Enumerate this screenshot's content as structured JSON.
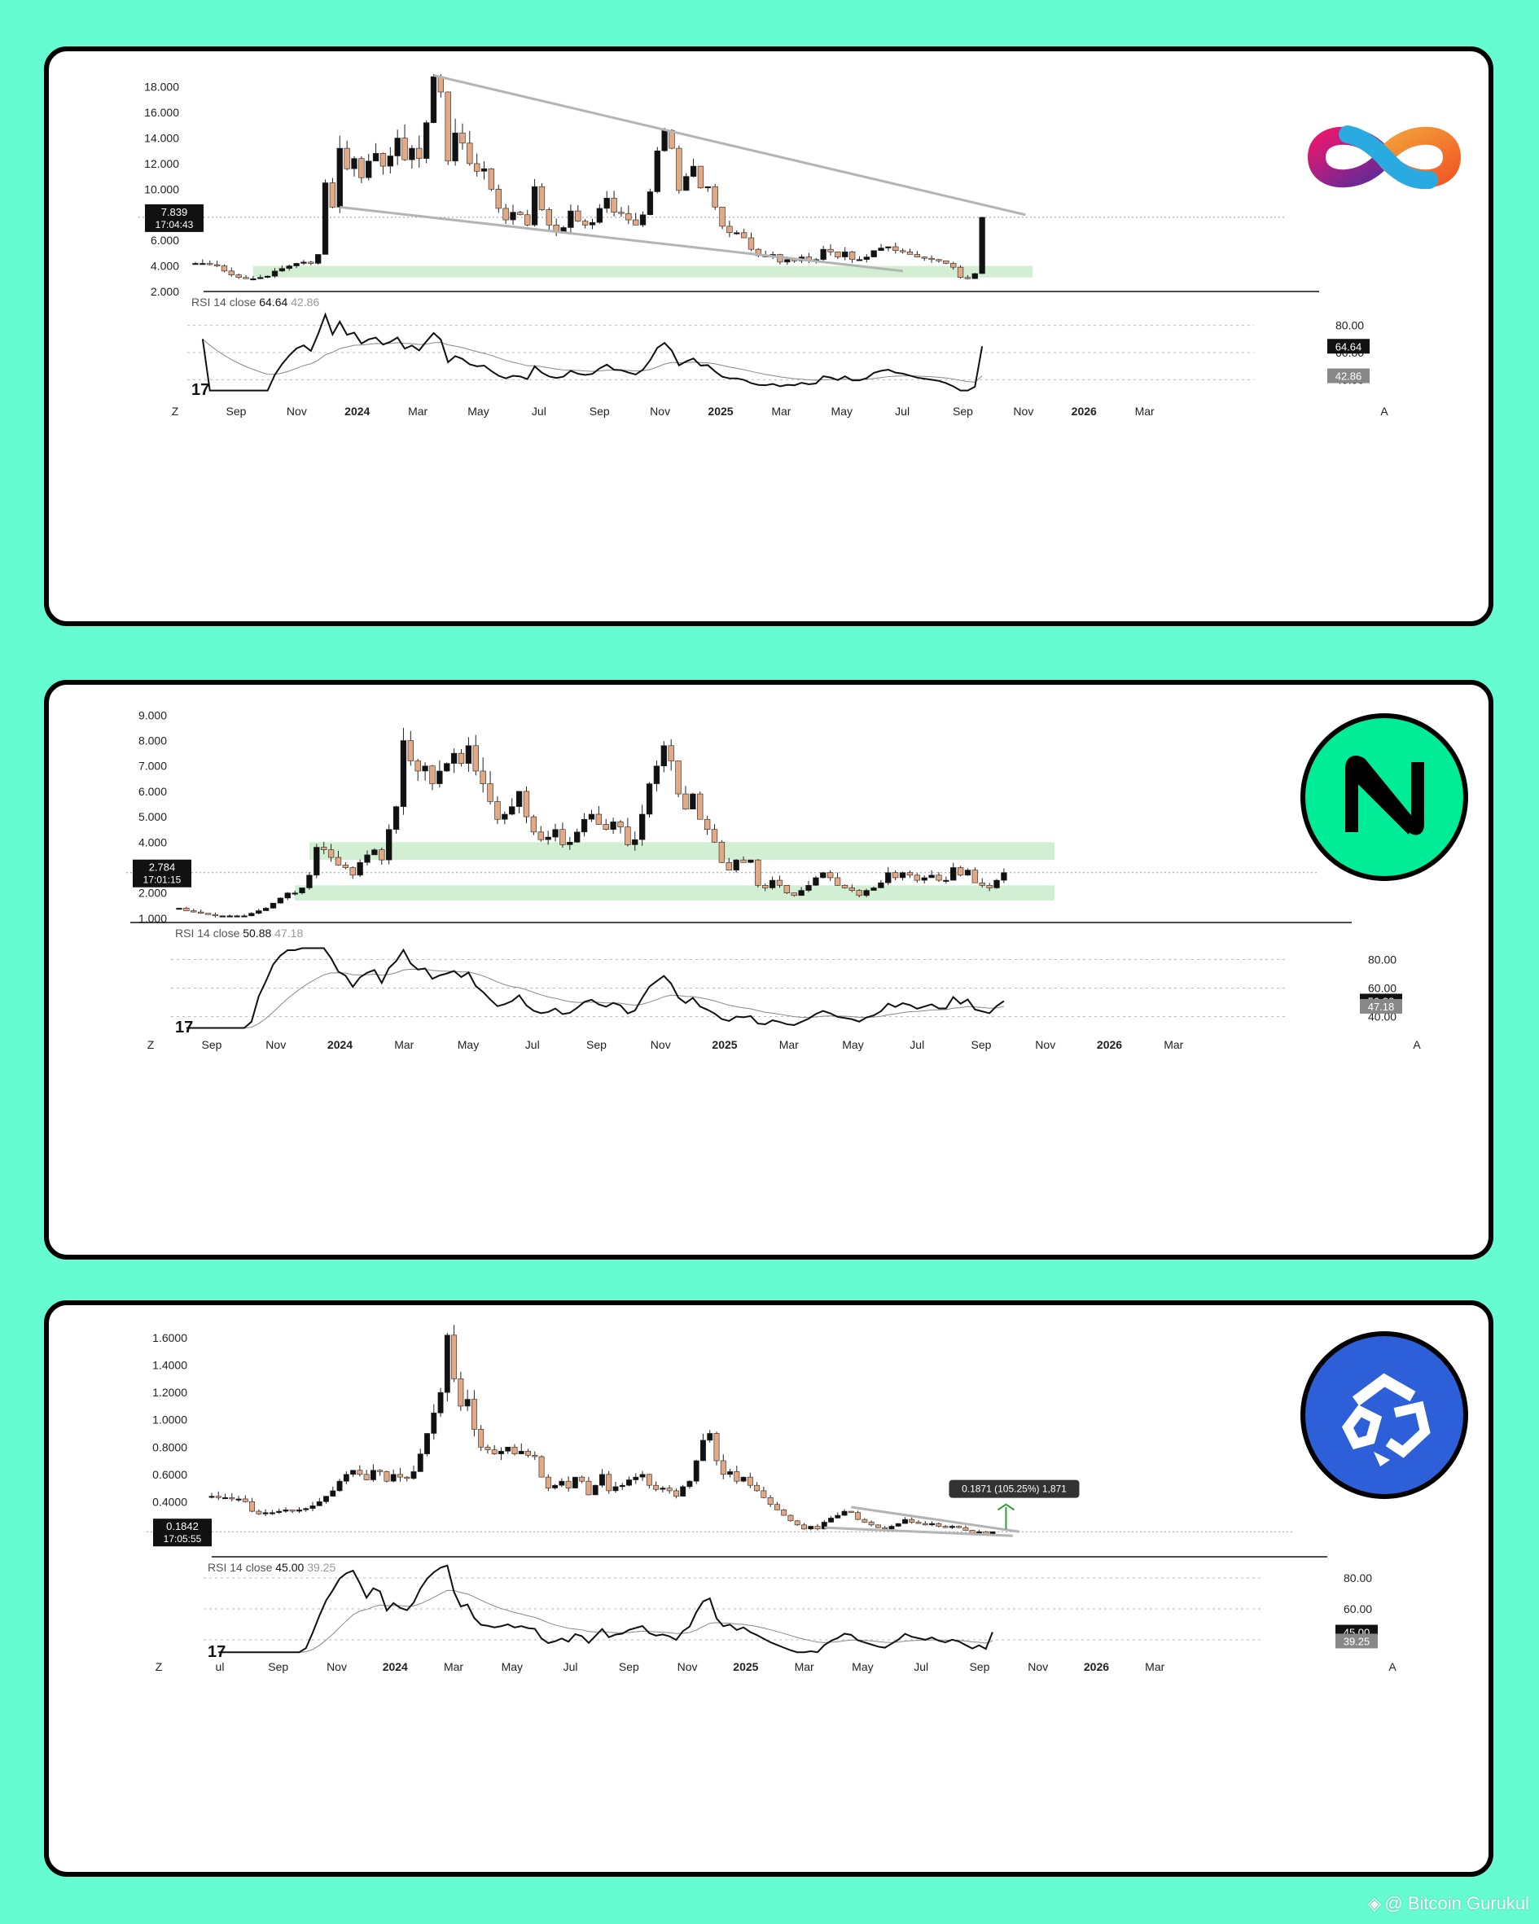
{
  "watermark": {
    "text": "@ Bitcoin Gurukul",
    "icon": "binance-diamond-icon"
  },
  "colors": {
    "background": "#66fcd1",
    "up": "#111111",
    "down": "#e3a884",
    "zone": "#c8ebc8",
    "trendline": "#b4b4b4"
  },
  "panels": [
    {
      "logo": "infinity-logo-icon",
      "price_box": {
        "value": "7.839",
        "timer": "17:04:43"
      },
      "rsi_legend": {
        "label": "RSI 14 close",
        "value": "64.64",
        "ma": "42.86"
      },
      "rsi_badges": {
        "value": "64.64",
        "ma": "42.86"
      },
      "x_labels": [
        "Sep",
        "Nov",
        "2024",
        "Mar",
        "May",
        "Jul",
        "Sep",
        "Nov",
        "2025",
        "Mar",
        "May",
        "Jul",
        "Sep",
        "Nov",
        "2026",
        "Mar"
      ],
      "corner_left": "Z",
      "corner_right": "A"
    },
    {
      "logo": "near-logo-icon",
      "price_box": {
        "value": "2.784",
        "timer": "17:01:15"
      },
      "rsi_legend": {
        "label": "RSI 14 close",
        "value": "50.88",
        "ma": "47.18"
      },
      "rsi_badges": {
        "value": "50.88",
        "ma": "47.18"
      },
      "x_labels": [
        "Sep",
        "Nov",
        "2024",
        "Mar",
        "May",
        "Jul",
        "Sep",
        "Nov",
        "2025",
        "Mar",
        "May",
        "Jul",
        "Sep",
        "Nov",
        "2026",
        "Mar"
      ],
      "corner_left": "Z",
      "corner_right": "A"
    },
    {
      "logo": "hexagon-logo-icon",
      "price_box": {
        "value": "0.1842",
        "timer": "17:05:55"
      },
      "rsi_legend": {
        "label": "RSI 14 close",
        "value": "45.00",
        "ma": "39.25"
      },
      "rsi_badges": {
        "value": "45.00",
        "ma": "39.25"
      },
      "measure_tooltip": "0.1871 (105.25%) 1,871",
      "x_labels": [
        "ul",
        "Sep",
        "Nov",
        "2024",
        "Mar",
        "May",
        "Jul",
        "Sep",
        "Nov",
        "2025",
        "Mar",
        "May",
        "Jul",
        "Sep",
        "Nov",
        "2026",
        "Mar"
      ],
      "corner_left": "Z",
      "corner_right": "A"
    }
  ],
  "chart_data": [
    {
      "type": "candlestick",
      "interval_note": "weekly candles",
      "y_ticks": [
        "2.000",
        "4.000",
        "6.000",
        "8.000",
        "10.000",
        "12.000",
        "14.000",
        "16.000",
        "18.000"
      ],
      "ylim": [
        2,
        19
      ],
      "close": [
        4.2,
        4.2,
        4.1,
        4.0,
        3.6,
        3.3,
        3.1,
        3.0,
        3.0,
        3.1,
        3.2,
        3.6,
        3.8,
        4.0,
        4.2,
        4.3,
        4.2,
        4.9,
        10.5,
        8.6,
        13.2,
        11.6,
        12.4,
        10.9,
        12.2,
        12.8,
        11.8,
        12.6,
        14.0,
        12.3,
        13.2,
        12.4,
        15.2,
        18.8,
        17.6,
        12.2,
        14.4,
        13.6,
        12.0,
        11.4,
        11.6,
        10.0,
        8.5,
        7.6,
        8.2,
        8.0,
        7.2,
        10.2,
        8.4,
        7.2,
        6.7,
        7.0,
        8.3,
        7.5,
        7.2,
        7.4,
        8.5,
        9.3,
        8.2,
        8.1,
        7.6,
        7.2,
        8.0,
        9.8,
        13.0,
        14.6,
        13.2,
        9.9,
        11.0,
        11.8,
        10.1,
        10.2,
        8.6,
        7.1,
        6.6,
        6.6,
        6.2,
        5.3,
        4.8,
        4.7,
        4.9,
        4.3,
        4.5,
        4.4,
        4.7,
        4.4,
        4.5,
        5.3,
        5.1,
        4.7,
        5.1,
        4.5,
        4.5,
        4.7,
        5.2,
        5.4,
        5.5,
        5.2,
        5.1,
        4.9,
        4.7,
        4.6,
        4.5,
        4.4,
        4.2,
        3.9,
        3.1,
        3.0,
        3.4,
        7.8
      ],
      "support_zone": [
        3.1,
        4.0
      ],
      "resistance_line": [
        [
          18.9,
          "2024-04"
        ],
        [
          8.0,
          "2025-11"
        ]
      ],
      "support_line": [
        [
          8.5,
          "2023-12"
        ],
        [
          3.6,
          "2025-07"
        ]
      ],
      "rsi": {
        "yticks": [
          "40.00",
          "60.00",
          "80.00"
        ],
        "value": 64.64,
        "ma": 42.86
      }
    },
    {
      "type": "candlestick",
      "y_ticks": [
        "1.000",
        "2.000",
        "3.000",
        "4.000",
        "5.000",
        "6.000",
        "7.000",
        "8.000",
        "9.000"
      ],
      "ylim": [
        0.9,
        9.3
      ],
      "close": [
        1.4,
        1.3,
        1.25,
        1.2,
        1.15,
        1.1,
        1.1,
        1.1,
        1.1,
        1.1,
        1.2,
        1.3,
        1.4,
        1.6,
        1.8,
        2.0,
        2.0,
        2.2,
        2.7,
        3.8,
        3.7,
        3.4,
        3.1,
        3.0,
        2.7,
        3.2,
        3.5,
        3.7,
        3.3,
        4.5,
        5.4,
        8.0,
        7.2,
        6.8,
        7.0,
        6.3,
        6.8,
        7.1,
        7.5,
        7.1,
        7.8,
        6.8,
        6.3,
        5.6,
        4.9,
        5.1,
        5.4,
        6.0,
        5.0,
        4.4,
        4.1,
        4.2,
        4.5,
        3.9,
        4.0,
        4.4,
        4.9,
        5.1,
        4.7,
        4.5,
        4.8,
        4.6,
        3.9,
        4.1,
        5.1,
        6.3,
        7.0,
        7.8,
        7.2,
        5.9,
        5.3,
        5.9,
        4.9,
        4.5,
        4.0,
        3.2,
        2.9,
        3.3,
        3.2,
        3.3,
        2.3,
        2.2,
        2.5,
        2.3,
        2.0,
        1.9,
        2.1,
        2.3,
        2.6,
        2.8,
        2.6,
        2.3,
        2.2,
        2.1,
        1.9,
        2.1,
        2.2,
        2.4,
        2.8,
        2.6,
        2.8,
        2.7,
        2.5,
        2.6,
        2.7,
        2.5,
        2.5,
        3.0,
        2.7,
        2.9,
        2.4,
        2.3,
        2.2,
        2.5,
        2.8
      ],
      "resistance_zone": [
        3.3,
        4.0
      ],
      "support_zone": [
        1.7,
        2.3
      ],
      "rsi": {
        "yticks": [
          "40.00",
          "60.00",
          "80.00"
        ],
        "value": 50.88,
        "ma": 47.18
      }
    },
    {
      "type": "candlestick",
      "y_ticks": [
        "0.4000",
        "0.6000",
        "0.8000",
        "1.0000",
        "1.2000",
        "1.4000",
        "1.6000"
      ],
      "ylim": [
        0.05,
        1.72
      ],
      "close": [
        0.44,
        0.43,
        0.43,
        0.42,
        0.42,
        0.4,
        0.33,
        0.31,
        0.32,
        0.32,
        0.33,
        0.34,
        0.33,
        0.34,
        0.35,
        0.37,
        0.4,
        0.44,
        0.48,
        0.55,
        0.6,
        0.63,
        0.6,
        0.56,
        0.63,
        0.62,
        0.55,
        0.6,
        0.58,
        0.57,
        0.62,
        0.75,
        0.9,
        1.05,
        1.2,
        1.62,
        1.3,
        1.1,
        1.15,
        0.93,
        0.8,
        0.78,
        0.75,
        0.77,
        0.8,
        0.75,
        0.77,
        0.74,
        0.73,
        0.58,
        0.5,
        0.52,
        0.55,
        0.5,
        0.58,
        0.55,
        0.45,
        0.52,
        0.6,
        0.48,
        0.51,
        0.52,
        0.56,
        0.58,
        0.6,
        0.52,
        0.49,
        0.5,
        0.48,
        0.44,
        0.51,
        0.55,
        0.7,
        0.85,
        0.9,
        0.7,
        0.6,
        0.62,
        0.55,
        0.58,
        0.52,
        0.48,
        0.43,
        0.38,
        0.34,
        0.3,
        0.26,
        0.23,
        0.2,
        0.22,
        0.2,
        0.25,
        0.28,
        0.3,
        0.33,
        0.32,
        0.27,
        0.25,
        0.23,
        0.21,
        0.2,
        0.22,
        0.24,
        0.27,
        0.25,
        0.24,
        0.23,
        0.24,
        0.22,
        0.21,
        0.22,
        0.21,
        0.19,
        0.17,
        0.18,
        0.16,
        0.18
      ],
      "falling_wedge": {
        "upper": [
          [
            0.34,
            "2025-04"
          ],
          [
            0.18,
            "2025-11"
          ]
        ],
        "lower": [
          [
            0.21,
            "2025-03"
          ],
          [
            0.15,
            "2025-11"
          ]
        ]
      },
      "rsi": {
        "yticks": [
          "60.00",
          "80.00"
        ],
        "value": 45.0,
        "ma": 39.25
      }
    }
  ]
}
